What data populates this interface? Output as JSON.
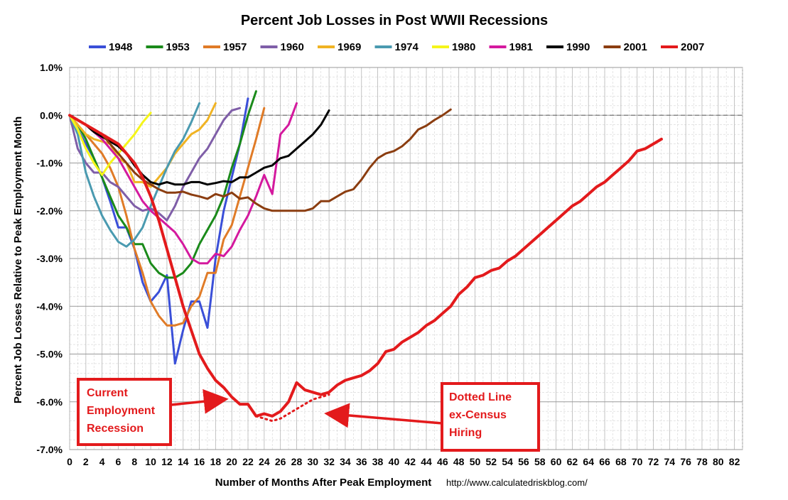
{
  "chart_data": {
    "type": "line",
    "title": "Percent Job Losses in Post WWII Recessions",
    "xlabel": "Number of Months After Peak Employment",
    "ylabel": "Percent Job Losses Relative to Peak Employment Month",
    "source": "http://www.calculatedriskblog.com/",
    "xlim": [
      0,
      83
    ],
    "ylim": [
      -7.0,
      1.0
    ],
    "x_ticks": [
      0,
      2,
      4,
      6,
      8,
      10,
      12,
      14,
      16,
      18,
      20,
      22,
      24,
      26,
      28,
      30,
      32,
      34,
      36,
      38,
      40,
      42,
      44,
      46,
      48,
      50,
      52,
      54,
      56,
      58,
      60,
      62,
      64,
      66,
      68,
      70,
      72,
      74,
      76,
      78,
      80,
      82
    ],
    "y_ticks": [
      1.0,
      0.0,
      -1.0,
      -2.0,
      -3.0,
      -4.0,
      -5.0,
      -6.0,
      -7.0
    ],
    "y_tick_labels": [
      "1.0%",
      "0.0%",
      "-1.0%",
      "-2.0%",
      "-3.0%",
      "-4.0%",
      "-5.0%",
      "-6.0%",
      "-7.0%"
    ],
    "grid": true,
    "legend_position": "top",
    "series": [
      {
        "name": "1948",
        "color": "#3a4fd8",
        "x": [
          0,
          1,
          2,
          3,
          4,
          5,
          6,
          7,
          8,
          9,
          10,
          11,
          12,
          13,
          14,
          15,
          16,
          17,
          18,
          19,
          20,
          21,
          22
        ],
        "y": [
          0,
          -0.3,
          -0.6,
          -0.9,
          -1.3,
          -1.8,
          -2.35,
          -2.35,
          -2.8,
          -3.5,
          -3.9,
          -3.7,
          -3.35,
          -5.2,
          -4.5,
          -3.9,
          -3.9,
          -4.45,
          -3.0,
          -2.0,
          -1.3,
          -0.6,
          0.35
        ]
      },
      {
        "name": "1953",
        "color": "#1a8a1a",
        "x": [
          0,
          1,
          2,
          3,
          4,
          5,
          6,
          7,
          8,
          9,
          10,
          11,
          12,
          13,
          14,
          15,
          16,
          17,
          18,
          19,
          20,
          21,
          22,
          23
        ],
        "y": [
          0,
          -0.2,
          -0.5,
          -0.9,
          -1.3,
          -1.7,
          -2.1,
          -2.35,
          -2.7,
          -2.7,
          -3.1,
          -3.3,
          -3.4,
          -3.4,
          -3.3,
          -3.1,
          -2.7,
          -2.4,
          -2.1,
          -1.7,
          -1.1,
          -0.6,
          0.0,
          0.5
        ]
      },
      {
        "name": "1957",
        "color": "#e07b27",
        "x": [
          0,
          1,
          2,
          3,
          4,
          5,
          6,
          7,
          8,
          9,
          10,
          11,
          12,
          13,
          14,
          15,
          16,
          17,
          18,
          19,
          20,
          21,
          22,
          23,
          24
        ],
        "y": [
          0,
          -0.2,
          -0.4,
          -0.6,
          -0.8,
          -1.1,
          -1.5,
          -2.1,
          -2.8,
          -3.3,
          -3.9,
          -4.2,
          -4.4,
          -4.4,
          -4.35,
          -4.0,
          -3.8,
          -3.3,
          -3.3,
          -2.6,
          -2.3,
          -1.7,
          -1.1,
          -0.5,
          0.15
        ]
      },
      {
        "name": "1960",
        "color": "#7f5ea8",
        "x": [
          0,
          1,
          2,
          3,
          4,
          5,
          6,
          7,
          8,
          9,
          10,
          11,
          12,
          13,
          14,
          15,
          16,
          17,
          18,
          19,
          20,
          21
        ],
        "y": [
          0,
          -0.7,
          -1.0,
          -1.2,
          -1.2,
          -1.4,
          -1.5,
          -1.7,
          -1.9,
          -2.0,
          -1.95,
          -2.05,
          -2.2,
          -1.9,
          -1.5,
          -1.2,
          -0.9,
          -0.7,
          -0.4,
          -0.1,
          0.1,
          0.15
        ]
      },
      {
        "name": "1969",
        "color": "#f0b323",
        "x": [
          0,
          1,
          2,
          3,
          4,
          5,
          6,
          7,
          8,
          9,
          10,
          11,
          12,
          13,
          14,
          15,
          16,
          17,
          18
        ],
        "y": [
          0,
          -0.2,
          -0.4,
          -0.5,
          -0.55,
          -0.6,
          -0.9,
          -1.0,
          -1.4,
          -1.4,
          -1.5,
          -1.3,
          -1.1,
          -0.8,
          -0.6,
          -0.4,
          -0.3,
          -0.1,
          0.25
        ]
      },
      {
        "name": "1974",
        "color": "#4a9ab0",
        "x": [
          0,
          1,
          2,
          3,
          4,
          5,
          6,
          7,
          8,
          9,
          10,
          11,
          12,
          13,
          14,
          15,
          16
        ],
        "y": [
          0,
          -0.4,
          -1.2,
          -1.7,
          -2.1,
          -2.4,
          -2.65,
          -2.75,
          -2.6,
          -2.35,
          -1.9,
          -1.5,
          -1.1,
          -0.75,
          -0.5,
          -0.15,
          0.25
        ]
      },
      {
        "name": "1980",
        "color": "#f5f51a",
        "x": [
          0,
          1,
          2,
          3,
          4,
          5,
          6,
          7,
          8,
          9,
          10
        ],
        "y": [
          0,
          -0.3,
          -0.7,
          -1.0,
          -1.25,
          -1.0,
          -0.8,
          -0.6,
          -0.4,
          -0.15,
          0.05
        ]
      },
      {
        "name": "1981",
        "color": "#d4199e",
        "x": [
          0,
          1,
          2,
          3,
          4,
          5,
          6,
          7,
          8,
          9,
          10,
          11,
          12,
          13,
          14,
          15,
          16,
          17,
          18,
          19,
          20,
          21,
          22,
          23,
          24,
          25,
          26,
          27,
          28
        ],
        "y": [
          0,
          -0.1,
          -0.2,
          -0.35,
          -0.5,
          -0.7,
          -0.9,
          -1.2,
          -1.5,
          -1.8,
          -2.0,
          -2.15,
          -2.3,
          -2.45,
          -2.7,
          -3.0,
          -3.1,
          -3.1,
          -2.9,
          -2.95,
          -2.75,
          -2.4,
          -2.1,
          -1.7,
          -1.25,
          -1.65,
          -0.4,
          -0.2,
          0.25
        ]
      },
      {
        "name": "1990",
        "color": "#000000",
        "x": [
          0,
          1,
          2,
          3,
          4,
          5,
          6,
          7,
          8,
          9,
          10,
          11,
          12,
          13,
          14,
          15,
          16,
          17,
          18,
          19,
          20,
          21,
          22,
          23,
          24,
          25,
          26,
          27,
          28,
          29,
          30,
          31,
          32
        ],
        "y": [
          0,
          -0.1,
          -0.2,
          -0.35,
          -0.45,
          -0.55,
          -0.65,
          -0.8,
          -1.05,
          -1.25,
          -1.4,
          -1.45,
          -1.4,
          -1.45,
          -1.45,
          -1.4,
          -1.4,
          -1.45,
          -1.42,
          -1.38,
          -1.4,
          -1.3,
          -1.3,
          -1.2,
          -1.1,
          -1.05,
          -0.9,
          -0.85,
          -0.7,
          -0.55,
          -0.4,
          -0.2,
          0.1
        ]
      },
      {
        "name": "2001",
        "color": "#8b3d10",
        "x": [
          0,
          1,
          2,
          3,
          4,
          5,
          6,
          7,
          8,
          9,
          10,
          11,
          12,
          13,
          14,
          15,
          16,
          17,
          18,
          19,
          20,
          21,
          22,
          23,
          24,
          25,
          26,
          27,
          28,
          29,
          30,
          31,
          32,
          33,
          34,
          35,
          36,
          37,
          38,
          39,
          40,
          41,
          42,
          43,
          44,
          45,
          46,
          47
        ],
        "y": [
          0,
          -0.1,
          -0.2,
          -0.3,
          -0.4,
          -0.6,
          -0.8,
          -1.0,
          -1.2,
          -1.35,
          -1.45,
          -1.55,
          -1.62,
          -1.62,
          -1.6,
          -1.66,
          -1.7,
          -1.75,
          -1.65,
          -1.7,
          -1.62,
          -1.75,
          -1.72,
          -1.85,
          -1.95,
          -2.0,
          -2.0,
          -2.0,
          -2.0,
          -2.0,
          -1.95,
          -1.8,
          -1.8,
          -1.7,
          -1.6,
          -1.55,
          -1.35,
          -1.1,
          -0.9,
          -0.8,
          -0.75,
          -0.65,
          -0.5,
          -0.3,
          -0.22,
          -0.1,
          0.0,
          0.12
        ]
      },
      {
        "name": "2007",
        "color": "#e31a1c",
        "x": [
          0,
          1,
          2,
          3,
          4,
          5,
          6,
          7,
          8,
          9,
          10,
          11,
          12,
          13,
          14,
          15,
          16,
          17,
          18,
          19,
          20,
          21,
          22,
          23,
          24,
          25,
          26,
          27,
          28,
          29,
          30,
          31,
          32,
          33,
          34,
          35,
          36,
          37,
          38,
          39,
          40,
          41,
          42,
          43,
          44,
          45,
          46,
          47,
          48,
          49,
          50,
          51,
          52,
          53,
          54,
          55,
          56,
          57,
          58,
          59,
          60,
          61,
          62,
          63,
          64,
          65,
          66,
          67,
          68,
          69,
          70,
          71,
          72,
          73
        ],
        "y": [
          0,
          -0.1,
          -0.2,
          -0.3,
          -0.4,
          -0.5,
          -0.6,
          -0.8,
          -1.0,
          -1.3,
          -1.7,
          -2.2,
          -2.8,
          -3.4,
          -4.0,
          -4.5,
          -5.0,
          -5.3,
          -5.55,
          -5.7,
          -5.9,
          -6.05,
          -6.05,
          -6.3,
          -6.25,
          -6.3,
          -6.2,
          -6.0,
          -5.6,
          -5.75,
          -5.8,
          -5.85,
          -5.8,
          -5.65,
          -5.55,
          -5.5,
          -5.45,
          -5.35,
          -5.2,
          -4.95,
          -4.9,
          -4.75,
          -4.65,
          -4.55,
          -4.4,
          -4.3,
          -4.15,
          -4.0,
          -3.75,
          -3.6,
          -3.4,
          -3.35,
          -3.25,
          -3.2,
          -3.05,
          -2.95,
          -2.8,
          -2.65,
          -2.5,
          -2.35,
          -2.2,
          -2.05,
          -1.9,
          -1.8,
          -1.65,
          -1.5,
          -1.4,
          -1.25,
          -1.1,
          -0.95,
          -0.75,
          -0.7,
          -0.6,
          -0.5
        ]
      },
      {
        "name": "2007 ex-Census",
        "color": "#e31a1c",
        "dashed": true,
        "x": [
          23,
          24,
          25,
          26,
          27,
          28,
          29,
          30,
          31,
          32
        ],
        "y": [
          -6.3,
          -6.35,
          -6.4,
          -6.35,
          -6.25,
          -6.15,
          -6.05,
          -5.95,
          -5.9,
          -5.85
        ]
      }
    ],
    "annotations": [
      {
        "lines": [
          "Current",
          "Employment",
          "Recession"
        ],
        "arrow_to": {
          "x": 19,
          "y": -5.95
        }
      },
      {
        "lines": [
          "Dotted Line",
          "ex-Census",
          "Hiring"
        ],
        "arrow_to": {
          "x": 32,
          "y": -6.25
        }
      }
    ]
  }
}
